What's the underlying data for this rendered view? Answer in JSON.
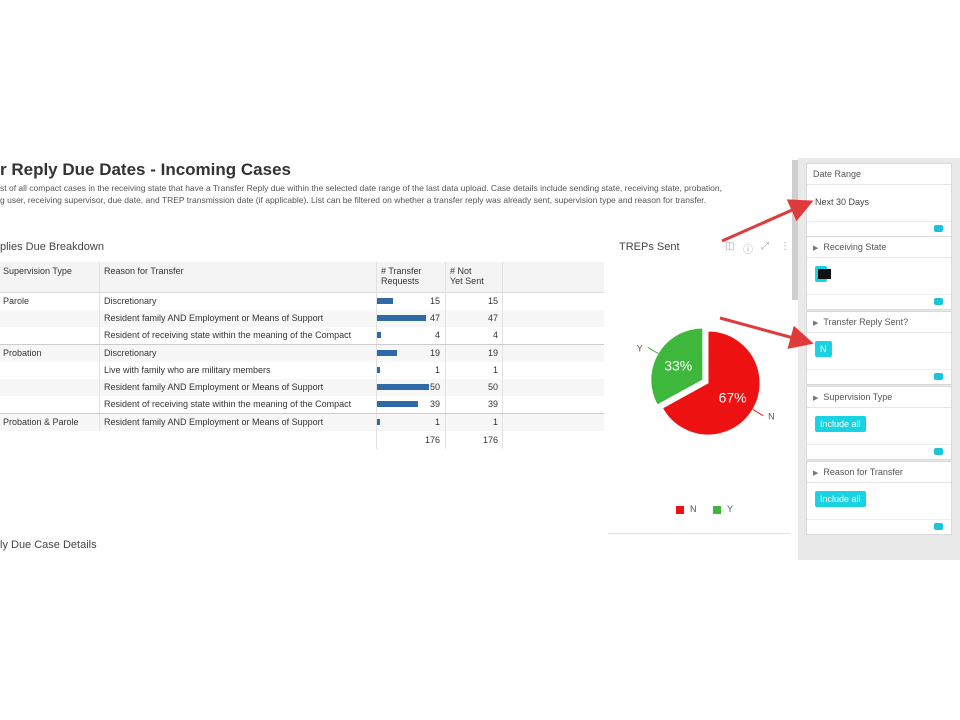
{
  "header": {
    "title": "r Reply Due Dates - Incoming Cases",
    "description_line1": "st of all compact cases in the receiving state that have a Transfer Reply due within the selected date range of the last data upload. Case details include sending state, receiving state, probation,",
    "description_line2": "g user, receiving supervisor, due date, and TREP transmission date (if applicable). List can be filtered on whether a transfer reply was already sent, supervision type and reason for transfer."
  },
  "breakdown": {
    "title": "plies Due Breakdown",
    "columns": {
      "supervision_type": "Supervision Type",
      "reason": "Reason for Transfer",
      "requests_l1": "# Transfer",
      "requests_l2": "Requests",
      "not_sent_l1": "# Not",
      "not_sent_l2": "Yet Sent"
    },
    "rows": [
      {
        "group": "Parole",
        "reason": "Discretionary",
        "requests": "15",
        "not_sent": "15",
        "bar": 15
      },
      {
        "group": "",
        "reason": "Resident family AND Employment or Means of Support",
        "requests": "47",
        "not_sent": "47",
        "bar": 47
      },
      {
        "group": "",
        "reason": "Resident of receiving state within the meaning of the Compact",
        "requests": "4",
        "not_sent": "4",
        "bar": 4
      },
      {
        "group": "Probation",
        "reason": "Discretionary",
        "requests": "19",
        "not_sent": "19",
        "bar": 19
      },
      {
        "group": "",
        "reason": "Live with family who are military members",
        "requests": "1",
        "not_sent": "1",
        "bar": 1
      },
      {
        "group": "",
        "reason": "Resident family AND Employment or Means of Support",
        "requests": "50",
        "not_sent": "50",
        "bar": 50
      },
      {
        "group": "",
        "reason": "Resident of receiving state within the meaning of the Compact",
        "requests": "39",
        "not_sent": "39",
        "bar": 39
      },
      {
        "group": "Probation & Parole",
        "reason": "Resident family AND Employment or Means of Support",
        "requests": "1",
        "not_sent": "1",
        "bar": 1
      }
    ],
    "totals": {
      "requests": "176",
      "not_sent": "176"
    },
    "bar_color": "#2f6aa6"
  },
  "pie": {
    "title": "TREPs Sent",
    "icons": [
      "filter-icon",
      "info-icon",
      "expand-icon",
      "more-icon"
    ],
    "slices": [
      {
        "label": "N",
        "value": 67,
        "text": "67%",
        "color": "#ee1111"
      },
      {
        "label": "Y",
        "value": 33,
        "text": "33%",
        "color": "#3db83d"
      }
    ],
    "legend": [
      {
        "label": "N",
        "color": "#ee1111"
      },
      {
        "label": "Y",
        "color": "#3db83d"
      }
    ]
  },
  "details": {
    "title": "ly Due Case Details"
  },
  "filters": {
    "date_range": {
      "label": "Date Range",
      "value": "Next 30 Days"
    },
    "receiving_state": {
      "label": "Receiving State"
    },
    "reply_sent": {
      "label": "Transfer Reply Sent?",
      "chip": "N"
    },
    "supervision_type": {
      "label": "Supervision Type",
      "chip": "Include all"
    },
    "reason": {
      "label": "Reason for Transfer",
      "chip": "Include all"
    },
    "accent_color": "#19d3e2"
  },
  "annotation_arrow_color": "#e03b3b"
}
